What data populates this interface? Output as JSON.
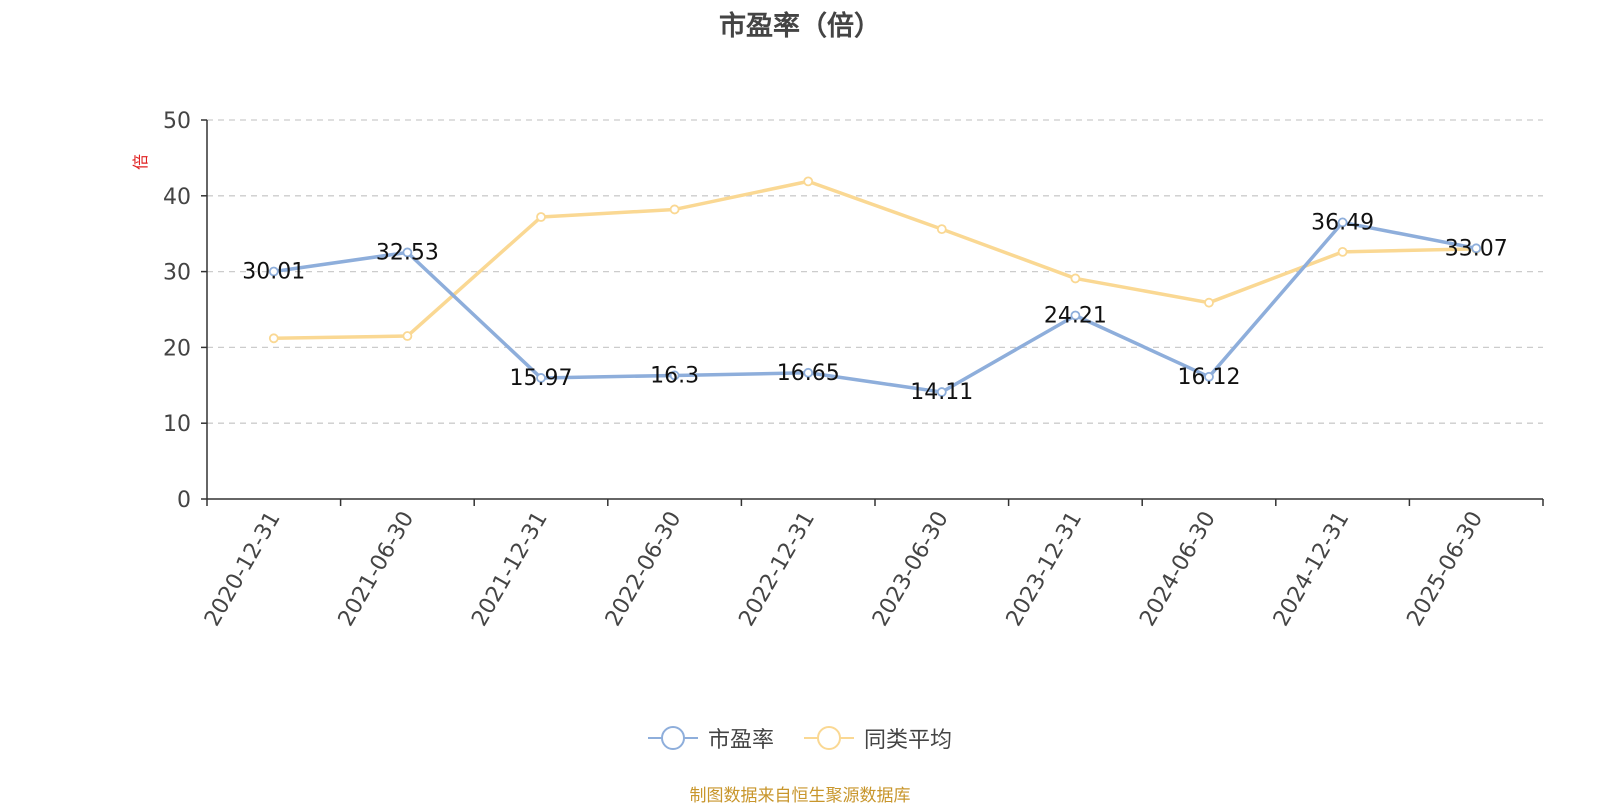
{
  "chart_data": {
    "type": "line",
    "title": "市盈率（倍）",
    "ylabel": "倍",
    "ylim": [
      0,
      50
    ],
    "yticks": [
      0,
      10,
      20,
      30,
      40,
      50
    ],
    "grid": true,
    "legend_position": "bottom",
    "categories": [
      "2020-12-31",
      "2021-06-30",
      "2021-12-31",
      "2022-06-30",
      "2022-12-31",
      "2023-06-30",
      "2023-12-31",
      "2024-06-30",
      "2024-12-31",
      "2025-06-30"
    ],
    "series": [
      {
        "name": "市盈率",
        "color": "#8eaedb",
        "show_labels": true,
        "values": [
          30.01,
          32.53,
          15.97,
          16.3,
          16.65,
          14.11,
          24.21,
          16.12,
          36.49,
          33.07
        ]
      },
      {
        "name": "同类平均",
        "color": "#fad893",
        "show_labels": false,
        "values": [
          21.2,
          21.5,
          37.2,
          38.2,
          41.9,
          35.6,
          29.1,
          25.9,
          32.6,
          33.0
        ]
      }
    ]
  },
  "source": "制图数据来自恒生聚源数据库",
  "colors": {
    "axis": "#333333",
    "grid": "#cccccc",
    "ylabel": "#e02020",
    "source": "#c8962c"
  }
}
